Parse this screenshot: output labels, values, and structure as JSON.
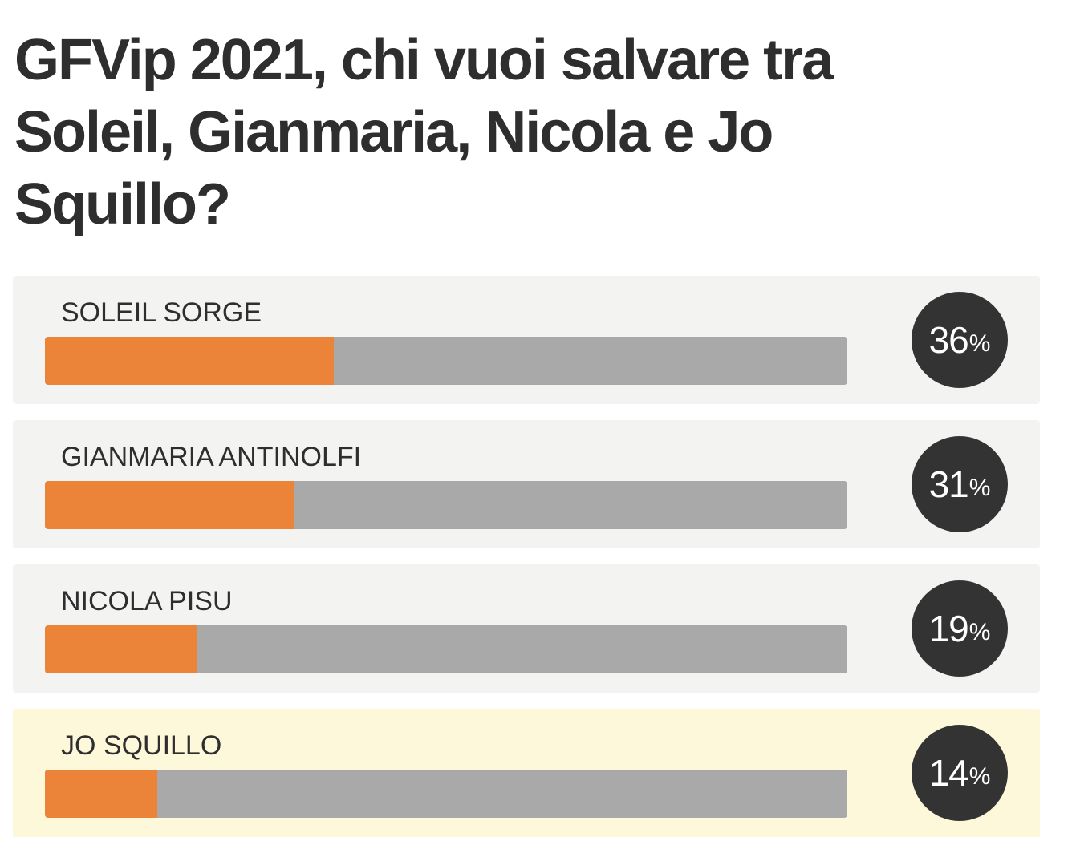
{
  "poll": {
    "title": "GFVip 2021, chi vuoi salvare tra Soleil, Gianmaria, Nicola e Jo Squillo?",
    "percent_sign": "%",
    "colors": {
      "bar_fill": "#eb8338",
      "bar_track": "#a9a9a9",
      "badge": "#333333",
      "row_background": "#f3f3f2",
      "row_highlight": "#fdf8da"
    },
    "options": [
      {
        "label": "SOLEIL SORGE",
        "percent": "36",
        "fraction": 0.36,
        "highlighted": false
      },
      {
        "label": "GIANMARIA ANTINOLFI",
        "percent": "31",
        "fraction": 0.31,
        "highlighted": false
      },
      {
        "label": "NICOLA PISU",
        "percent": "19",
        "fraction": 0.19,
        "highlighted": false
      },
      {
        "label": "JO SQUILLO",
        "percent": "14",
        "fraction": 0.14,
        "highlighted": true
      }
    ]
  }
}
